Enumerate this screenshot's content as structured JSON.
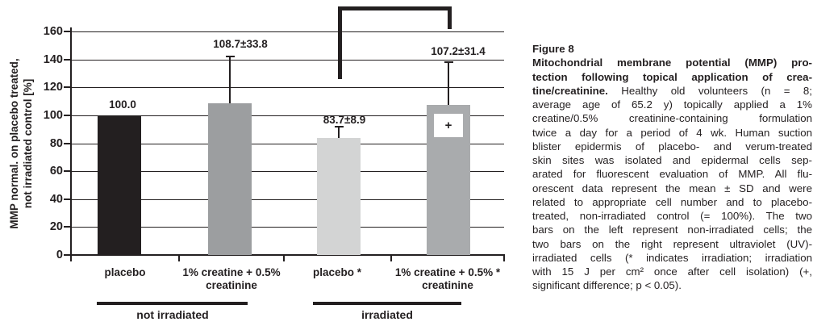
{
  "figure": {
    "caption": {
      "label": "Figure 8",
      "lines": [
        {
          "b": "Mitochondrial membrane potential (MMP) pro-",
          "r": ""
        },
        {
          "b": "tection following topical application of crea-",
          "r": ""
        },
        {
          "b": "tine/creatinine.",
          "r": " Healthy old volunteers (n = 8;"
        },
        {
          "b": "",
          "r": "average age of 65.2 y) topically applied a 1%"
        },
        {
          "b": "",
          "r": "creatine/0.5% creatinine-containing formulation"
        },
        {
          "b": "",
          "r": "twice a day for a period of 4 wk. Human suction"
        },
        {
          "b": "",
          "r": "blister epidermis of placebo- and verum-treated"
        },
        {
          "b": "",
          "r": "skin sites was isolated and epidermal cells sep-"
        },
        {
          "b": "",
          "r": "arated for fluorescent evaluation of MMP. All flu-"
        },
        {
          "b": "",
          "r": "orescent data represent the mean ± SD and were"
        },
        {
          "b": "",
          "r": "related to appropriate cell number and to placebo-"
        },
        {
          "b": "",
          "r": "treated, non-irradiated control (= 100%). The two"
        },
        {
          "b": "",
          "r": "bars on the left represent non-irradiated cells; the"
        },
        {
          "b": "",
          "r": "two bars on the right represent ultraviolet (UV)-"
        },
        {
          "b": "",
          "r": "irradiated cells (* indicates irradiation; irradiation"
        },
        {
          "b": "",
          "r": "with 15 J per cm² once after cell isolation) (+,"
        },
        {
          "b": "",
          "r": "significant difference; p < 0.05)."
        }
      ]
    }
  },
  "chart_data": {
    "type": "bar",
    "title": "",
    "ylabel_lines": [
      "MMP normal. on placebo treated,",
      "not irradiated control [%]"
    ],
    "ylabel": "MMP normal. on placebo treated, not irradiated control [%]",
    "ylim": [
      0,
      160
    ],
    "ytick_step": 20,
    "grid": true,
    "legend": false,
    "categories": [
      {
        "name": "placebo",
        "label_lines": [
          "placebo"
        ]
      },
      {
        "name": "creatine-creatinine",
        "label_lines": [
          "1% creatine + 0.5%",
          "creatinine"
        ]
      },
      {
        "name": "placebo-irradiated",
        "label_lines": [
          "placebo *"
        ]
      },
      {
        "name": "creatine-creatinine-irradiated",
        "label_lines": [
          "1% creatine + 0.5% *",
          "creatinine"
        ]
      }
    ],
    "values": [
      100.0,
      108.7,
      83.7,
      107.2
    ],
    "errors_sd": [
      null,
      33.8,
      8.9,
      31.4
    ],
    "value_labels": [
      "100.0",
      "108.7±33.8",
      "83.7±8.9",
      "107.2±31.4"
    ],
    "bar_colors": [
      "#231f20",
      "#9c9ea0",
      "#d3d4d4",
      "#a9abad"
    ],
    "axis_color": "#231f20",
    "groups": [
      {
        "label": "not irradiated",
        "bar_indices": [
          0,
          1
        ]
      },
      {
        "label": "irradiated",
        "bar_indices": [
          2,
          3
        ]
      }
    ],
    "annotations": {
      "plus_marker": {
        "bar_index": 3,
        "symbol": "+",
        "meaning": "significant difference; p < 0.05"
      },
      "significance_bracket": {
        "between": [
          2,
          3
        ]
      }
    }
  }
}
